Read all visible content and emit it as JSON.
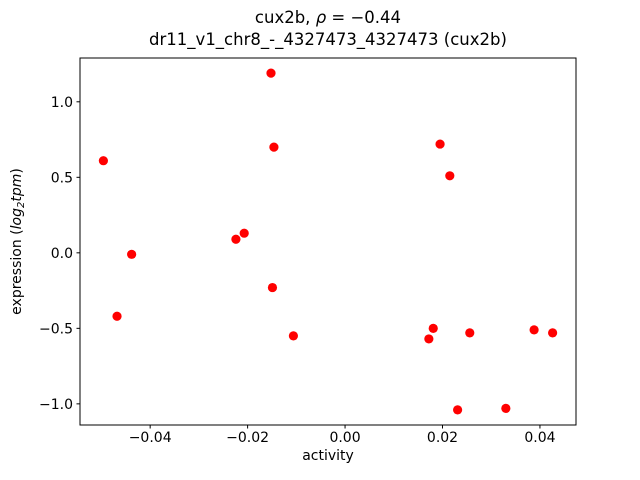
{
  "figure": {
    "title": {
      "prefix": "cux2b, ",
      "rho": "ρ",
      "suffix": " = −0.44"
    },
    "subtitle": "dr11_v1_chr8_-_4327473_4327473 (cux2b)",
    "xlabel": "activity",
    "ylabel": {
      "prefix": "expression (",
      "log": "log",
      "sub": "2",
      "tpm": "tpm",
      "suffix": ")"
    }
  },
  "chart_data": {
    "type": "scatter",
    "title": "cux2b, ρ = −0.44",
    "subtitle": "dr11_v1_chr8_-_4327473_4327473 (cux2b)",
    "xlabel": "activity",
    "ylabel": "expression (log2 tpm)",
    "correlation_rho": -0.44,
    "grid": false,
    "legend": false,
    "xlim": [
      -0.0544,
      0.0474
    ],
    "ylim": [
      -1.14,
      1.29
    ],
    "marker": {
      "color": "#ff0000",
      "radius_px": 4.6
    },
    "xticks": [
      {
        "v": -0.04,
        "label": "−0.04"
      },
      {
        "v": -0.02,
        "label": "−0.02"
      },
      {
        "v": 0.0,
        "label": "0.00"
      },
      {
        "v": 0.02,
        "label": "0.02"
      },
      {
        "v": 0.04,
        "label": "0.04"
      }
    ],
    "yticks": [
      {
        "v": -1.0,
        "label": "−1.0"
      },
      {
        "v": -0.5,
        "label": "−0.5"
      },
      {
        "v": 0.0,
        "label": "0.0"
      },
      {
        "v": 0.5,
        "label": "0.5"
      },
      {
        "v": 1.0,
        "label": "1.0"
      }
    ],
    "points": [
      {
        "x": -0.0496,
        "y": 0.61
      },
      {
        "x": -0.0468,
        "y": -0.42
      },
      {
        "x": -0.0438,
        "y": -0.01
      },
      {
        "x": -0.0224,
        "y": 0.09
      },
      {
        "x": -0.0207,
        "y": 0.13
      },
      {
        "x": -0.0152,
        "y": 1.19
      },
      {
        "x": -0.0149,
        "y": -0.23
      },
      {
        "x": -0.0146,
        "y": 0.7
      },
      {
        "x": -0.0106,
        "y": -0.55
      },
      {
        "x": 0.0172,
        "y": -0.57
      },
      {
        "x": 0.0181,
        "y": -0.5
      },
      {
        "x": 0.0195,
        "y": 0.72
      },
      {
        "x": 0.0215,
        "y": 0.51
      },
      {
        "x": 0.0231,
        "y": -1.04
      },
      {
        "x": 0.0256,
        "y": -0.53
      },
      {
        "x": 0.033,
        "y": -1.03
      },
      {
        "x": 0.0388,
        "y": -0.51
      },
      {
        "x": 0.0426,
        "y": -0.53
      }
    ]
  }
}
